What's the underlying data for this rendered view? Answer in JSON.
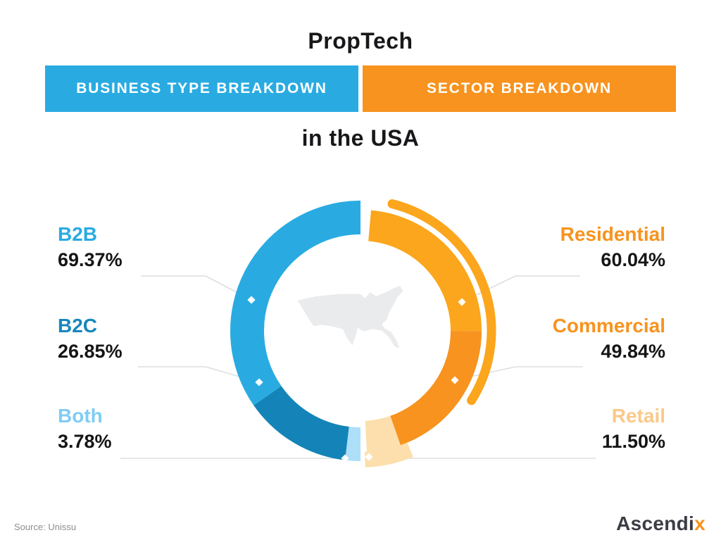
{
  "header": {
    "title": "PropTech",
    "tabs": [
      {
        "label": "BUSINESS TYPE BREAKDOWN",
        "color": "#29ABE2"
      },
      {
        "label": "SECTOR BREAKDOWN",
        "color": "#F7931E"
      }
    ],
    "subtitle": "in the USA"
  },
  "chart_data": {
    "type": "donut",
    "title": "PropTech business type and sector breakdown in the USA",
    "legend_position": "sides",
    "center_icon": "usa-map-silhouette",
    "left": {
      "name": "Business type breakdown",
      "half": "left",
      "total": 100,
      "segments": [
        {
          "label": "B2B",
          "value": 69.37,
          "display": "69.37%",
          "color": "#29ABE2",
          "label_color": "#29ABE2"
        },
        {
          "label": "B2C",
          "value": 26.85,
          "display": "26.85%",
          "color": "#1484B8",
          "label_color": "#1787BC"
        },
        {
          "label": "Both",
          "value": 3.78,
          "display": "3.78%",
          "color": "#AEDFF8",
          "label_color": "#7FCDF3"
        }
      ]
    },
    "right": {
      "name": "Sector breakdown",
      "half": "right",
      "segments": [
        {
          "label": "Residential",
          "value": 60.04,
          "display": "60.04%",
          "color": "#FBA61C",
          "label_color": "#F7931E"
        },
        {
          "label": "Commercial",
          "value": 49.84,
          "display": "49.84%",
          "color": "#F7931E",
          "label_color": "#F7931E"
        },
        {
          "label": "Retail",
          "value": 11.5,
          "display": "11.50%",
          "color": "#FCDFAC",
          "label_color": "#FBC988"
        }
      ]
    }
  },
  "footer": {
    "source": "Source: Unissu",
    "brand": {
      "main": "Ascendi",
      "accent": "x",
      "accent_color": "#F7931E"
    }
  }
}
